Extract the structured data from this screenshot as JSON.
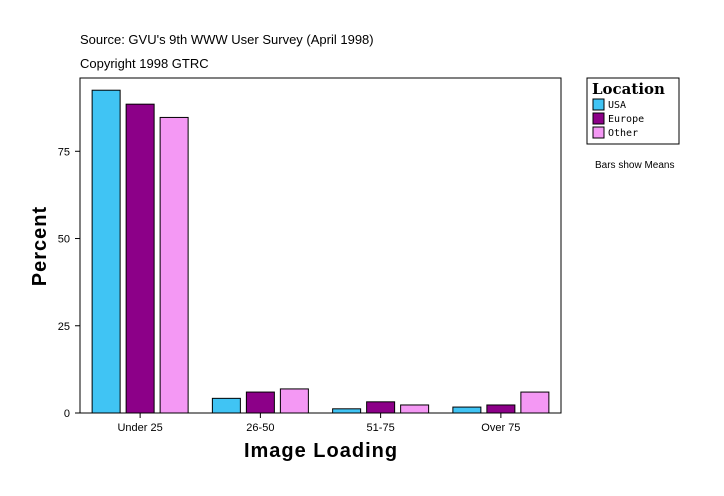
{
  "header": {
    "source": "Source: GVU's 9th WWW User Survey (April 1998)",
    "copyright": "Copyright 1998 GTRC"
  },
  "note": "Bars show Means",
  "chart_data": {
    "type": "bar",
    "categories": [
      "Under 25",
      "26-50",
      "51-75",
      "Over 75"
    ],
    "series": [
      {
        "name": "USA",
        "color": "#40c4f4",
        "values": [
          92.5,
          4.2,
          1.2,
          1.7
        ]
      },
      {
        "name": "Europe",
        "color": "#8c0088",
        "values": [
          88.5,
          6.0,
          3.2,
          2.3
        ]
      },
      {
        "name": "Other",
        "color": "#f498f4",
        "values": [
          84.7,
          6.9,
          2.3,
          6.0
        ]
      }
    ],
    "xlabel": "Image Loading",
    "ylabel": "Percent",
    "ylim": [
      0,
      96
    ],
    "yticks": [
      0,
      25,
      50,
      75
    ],
    "grid": false,
    "legend": {
      "title": "Location",
      "placement": "right"
    }
  }
}
